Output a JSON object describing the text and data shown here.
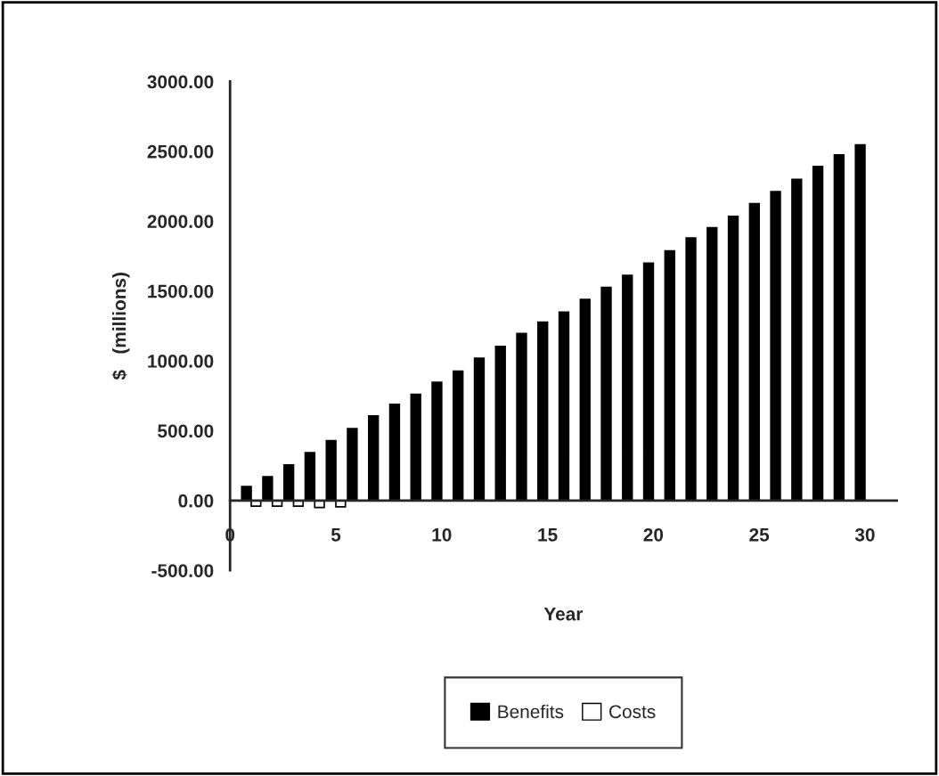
{
  "chart_data": {
    "type": "bar",
    "xlabel": "Year",
    "ylabel": "$   (millions)",
    "x": [
      1,
      2,
      3,
      4,
      5,
      6,
      7,
      8,
      9,
      10,
      11,
      12,
      13,
      14,
      15,
      16,
      17,
      18,
      19,
      20,
      21,
      22,
      23,
      24,
      25,
      26,
      27,
      28,
      29,
      30
    ],
    "series": [
      {
        "name": "Benefits",
        "color": "#000000",
        "values": [
          100,
          170,
          255,
          342,
          429,
          515,
          606,
          688,
          760,
          846,
          927,
          1019,
          1104,
          1195,
          1277,
          1349,
          1440,
          1526,
          1612,
          1699,
          1787,
          1879,
          1953,
          2034,
          2125,
          2212,
          2299,
          2392,
          2474,
          2547
        ]
      },
      {
        "name": "Costs",
        "color": "#ffffff",
        "values": [
          -40,
          -40,
          -40,
          -50,
          -45,
          null,
          null,
          null,
          null,
          null,
          null,
          null,
          null,
          null,
          null,
          null,
          null,
          null,
          null,
          null,
          null,
          null,
          null,
          null,
          null,
          null,
          null,
          null,
          null,
          null
        ]
      }
    ],
    "xlim": [
      0,
      31.5
    ],
    "xticks": [
      0,
      5,
      10,
      15,
      20,
      25,
      30
    ],
    "ylim": [
      -500,
      3000
    ],
    "yticks": [
      {
        "value": -500,
        "label": "-500.00"
      },
      {
        "value": 0,
        "label": "0.00"
      },
      {
        "value": 500,
        "label": "500.00"
      },
      {
        "value": 1000,
        "label": "1000.00"
      },
      {
        "value": 1500,
        "label": "1500.00"
      },
      {
        "value": 2000,
        "label": "2000.00"
      },
      {
        "value": 2500,
        "label": "2500.00"
      },
      {
        "value": 3000,
        "label": "3000.00"
      }
    ],
    "grid": false,
    "legend": "bottom"
  }
}
